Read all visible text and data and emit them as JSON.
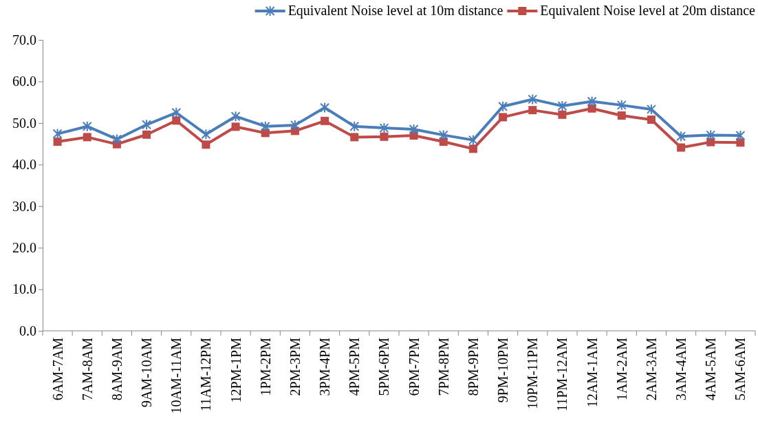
{
  "chart_data": {
    "type": "line",
    "categories": [
      "6AM-7AM",
      "7AM-8AM",
      "8AM-9AM",
      "9AM-10AM",
      "10AM-11AM",
      "11AM-12PM",
      "12PM-1PM",
      "1PM-2PM",
      "2PM-3PM",
      "3PM-4PM",
      "4PM-5PM",
      "5PM-6PM",
      "6PM-7PM",
      "7PM-8PM",
      "8PM-9PM",
      "9PM-10PM",
      "10PM-11PM",
      "11PM-12AM",
      "12AM-1AM",
      "1AM-2AM",
      "2AM-3AM",
      "3AM-4AM",
      "4AM-5AM",
      "5AM-6AM"
    ],
    "series": [
      {
        "name": "Equivalent Noise level at 10m distance",
        "color": "#4a7ebb",
        "marker": "cross",
        "values": [
          47.4,
          49.2,
          46.1,
          49.6,
          52.5,
          47.3,
          51.6,
          49.2,
          49.5,
          53.7,
          49.2,
          48.8,
          48.5,
          47.1,
          45.9,
          54.0,
          55.7,
          54.1,
          55.2,
          54.3,
          53.3,
          46.8,
          47.1,
          47.0
        ]
      },
      {
        "name": "Equivalent Noise level at 20m distance",
        "color": "#be4b48",
        "marker": "square",
        "values": [
          45.5,
          46.6,
          44.9,
          47.2,
          50.6,
          44.8,
          49.1,
          47.6,
          48.1,
          50.5,
          46.6,
          46.7,
          47.0,
          45.5,
          43.8,
          51.4,
          53.1,
          52.0,
          53.5,
          51.8,
          50.8,
          44.1,
          45.4,
          45.3
        ]
      }
    ],
    "ylim": [
      0,
      70
    ],
    "yticks": [
      {
        "value": 0,
        "label": "0.0"
      },
      {
        "value": 10,
        "label": "10.0"
      },
      {
        "value": 20,
        "label": "20.0"
      },
      {
        "value": 30,
        "label": "30.0"
      },
      {
        "value": 40,
        "label": "40.0"
      },
      {
        "value": 50,
        "label": "50.0"
      },
      {
        "value": 60,
        "label": "60.0"
      },
      {
        "value": 70,
        "label": "70.0"
      }
    ],
    "grid": false,
    "legend": "top right"
  }
}
